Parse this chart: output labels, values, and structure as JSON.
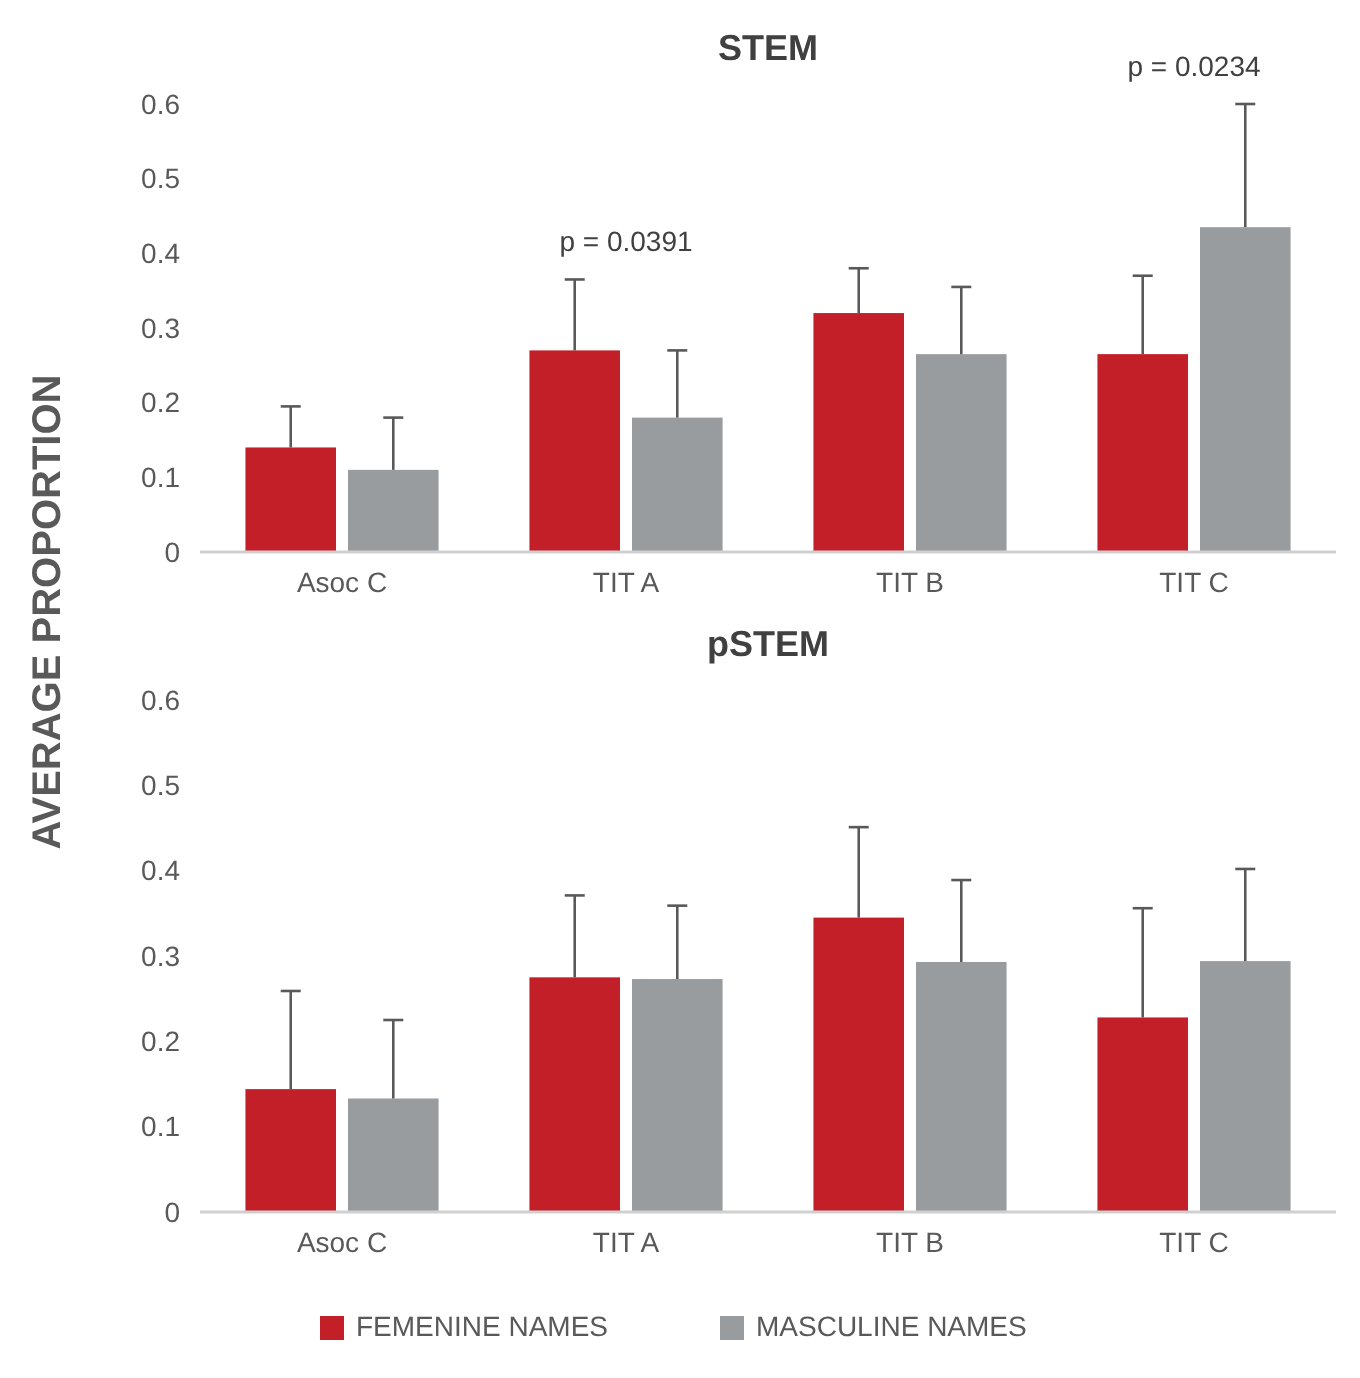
{
  "chart_data": [
    {
      "type": "bar",
      "title": "STEM",
      "ylabel": "AVERAGE PROPORTION",
      "categories": [
        "Asoc  C",
        "TIT A",
        "TIT B",
        "TIT C"
      ],
      "ylim": [
        0,
        0.6
      ],
      "yticks": [
        0,
        0.1,
        0.2,
        0.3,
        0.4,
        0.5,
        0.6
      ],
      "series": [
        {
          "color": "#c21f28",
          "values": [
            0.14,
            0.27,
            0.32,
            0.265
          ],
          "errors": [
            [
              0.14,
              0.195
            ],
            [
              0.27,
              0.365
            ],
            [
              0.32,
              0.38
            ],
            [
              0.265,
              0.37
            ]
          ]
        },
        {
          "color": "#999c9f",
          "values": [
            0.11,
            0.18,
            0.265,
            0.435
          ],
          "errors": [
            [
              0.11,
              0.18
            ],
            [
              0.18,
              0.27
            ],
            [
              0.265,
              0.355
            ],
            [
              0.435,
              0.6
            ]
          ]
        }
      ],
      "annotations": [
        "p = 0.0391",
        "p = 0.0234"
      ]
    },
    {
      "type": "bar",
      "title": "pSTEM",
      "categories": [
        "Asoc  C",
        "TIT A",
        "TIT B",
        "TIT C"
      ],
      "ylim": [
        0,
        0.6
      ],
      "yticks": [
        0,
        0.1,
        0.2,
        0.3,
        0.4,
        0.5,
        0.6
      ],
      "legend": "bottom",
      "series": [
        {
          "name": "FEMENINE NAMES",
          "color": "#c21f28",
          "values": [
            0.144,
            0.275,
            0.345,
            0.228
          ],
          "errors": [
            [
              0.144,
              0.259
            ],
            [
              0.275,
              0.371
            ],
            [
              0.345,
              0.451
            ],
            [
              0.228,
              0.356
            ]
          ]
        },
        {
          "name": "MASCULINE NAMES",
          "color": "#999c9f",
          "values": [
            0.133,
            0.273,
            0.293,
            0.294
          ],
          "errors": [
            [
              0.133,
              0.225
            ],
            [
              0.273,
              0.359
            ],
            [
              0.293,
              0.389
            ],
            [
              0.294,
              0.402
            ]
          ]
        }
      ]
    }
  ]
}
